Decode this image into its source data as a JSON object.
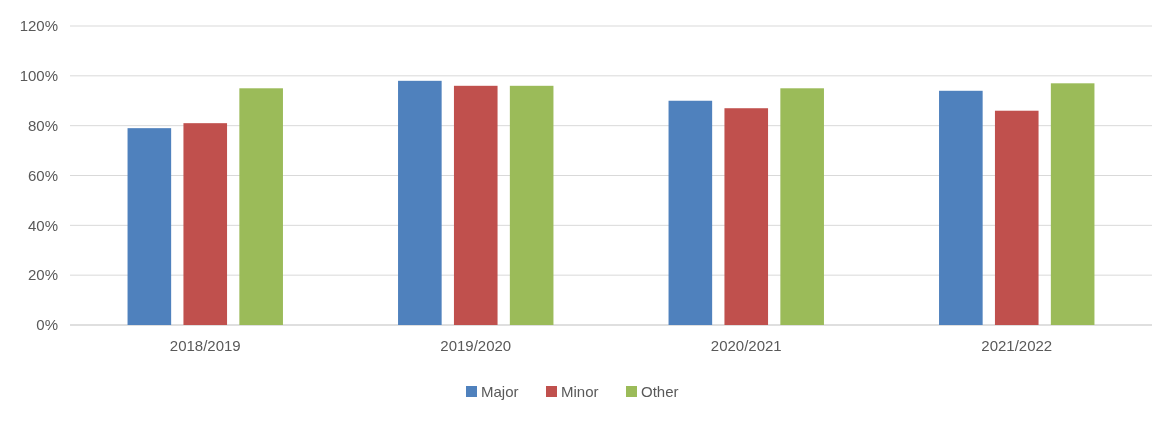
{
  "chart_data": {
    "type": "bar",
    "categories": [
      "2018/2019",
      "2019/2020",
      "2020/2021",
      "2021/2022"
    ],
    "series": [
      {
        "name": "Major",
        "color": "#4f81bd",
        "values": [
          79,
          98,
          90,
          94
        ]
      },
      {
        "name": "Minor",
        "color": "#c0504d",
        "values": [
          81,
          96,
          87,
          86
        ]
      },
      {
        "name": "Other",
        "color": "#9bbb59",
        "values": [
          95,
          96,
          95,
          97
        ]
      }
    ],
    "ylim": [
      0,
      120
    ],
    "yticks": [
      {
        "value": 0,
        "label": "0%"
      },
      {
        "value": 20,
        "label": "20%"
      },
      {
        "value": 40,
        "label": "40%"
      },
      {
        "value": 60,
        "label": "60%"
      },
      {
        "value": 80,
        "label": "80%"
      },
      {
        "value": 100,
        "label": "100%"
      },
      {
        "value": 120,
        "label": "120%"
      }
    ],
    "grid": "y",
    "legend": "bottom"
  }
}
